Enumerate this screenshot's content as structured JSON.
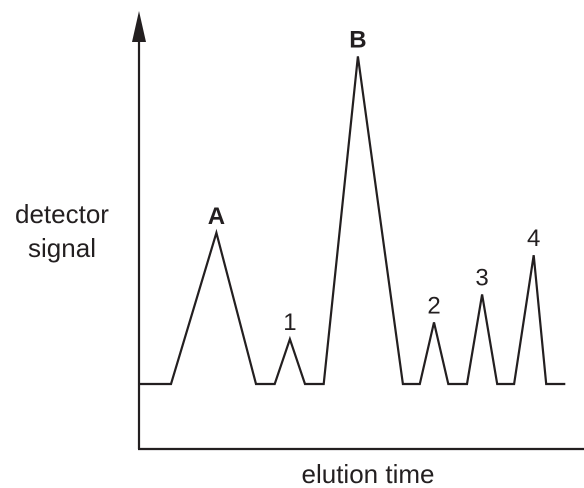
{
  "chart_data": {
    "type": "line",
    "xlabel": "elution time",
    "ylabel_lines": [
      "detector",
      "signal"
    ],
    "grid": false,
    "legend": "none",
    "color": "#231f20",
    "ticks": "none",
    "baseline": 0,
    "xlim": [
      0,
      100
    ],
    "ylim": [
      0,
      100
    ],
    "peaks": [
      {
        "label": "A",
        "bold": true,
        "x": 17.4,
        "height": 54
      },
      {
        "label": "1",
        "bold": false,
        "x": 33.9,
        "height": 16
      },
      {
        "label": "B",
        "bold": true,
        "x": 49.2,
        "height": 117
      },
      {
        "label": "2",
        "bold": false,
        "x": 66.3,
        "height": 22
      },
      {
        "label": "3",
        "bold": false,
        "x": 77.1,
        "height": 32
      },
      {
        "label": "4",
        "bold": false,
        "x": 88.7,
        "height": 46
      }
    ],
    "series": [
      {
        "x": [
          0,
          7.2,
          17.4,
          26.3,
          30.5,
          33.9,
          37.3,
          41.5,
          49.2,
          59.3,
          63.1,
          66.3,
          69.5,
          73.7,
          77.1,
          80.5,
          84.3,
          88.7,
          91.5,
          95.8
        ],
        "y": [
          0,
          0,
          54,
          0,
          0,
          16,
          0,
          0,
          117,
          0,
          0,
          22,
          0,
          0,
          32,
          0,
          0,
          46,
          0,
          0
        ]
      }
    ]
  }
}
